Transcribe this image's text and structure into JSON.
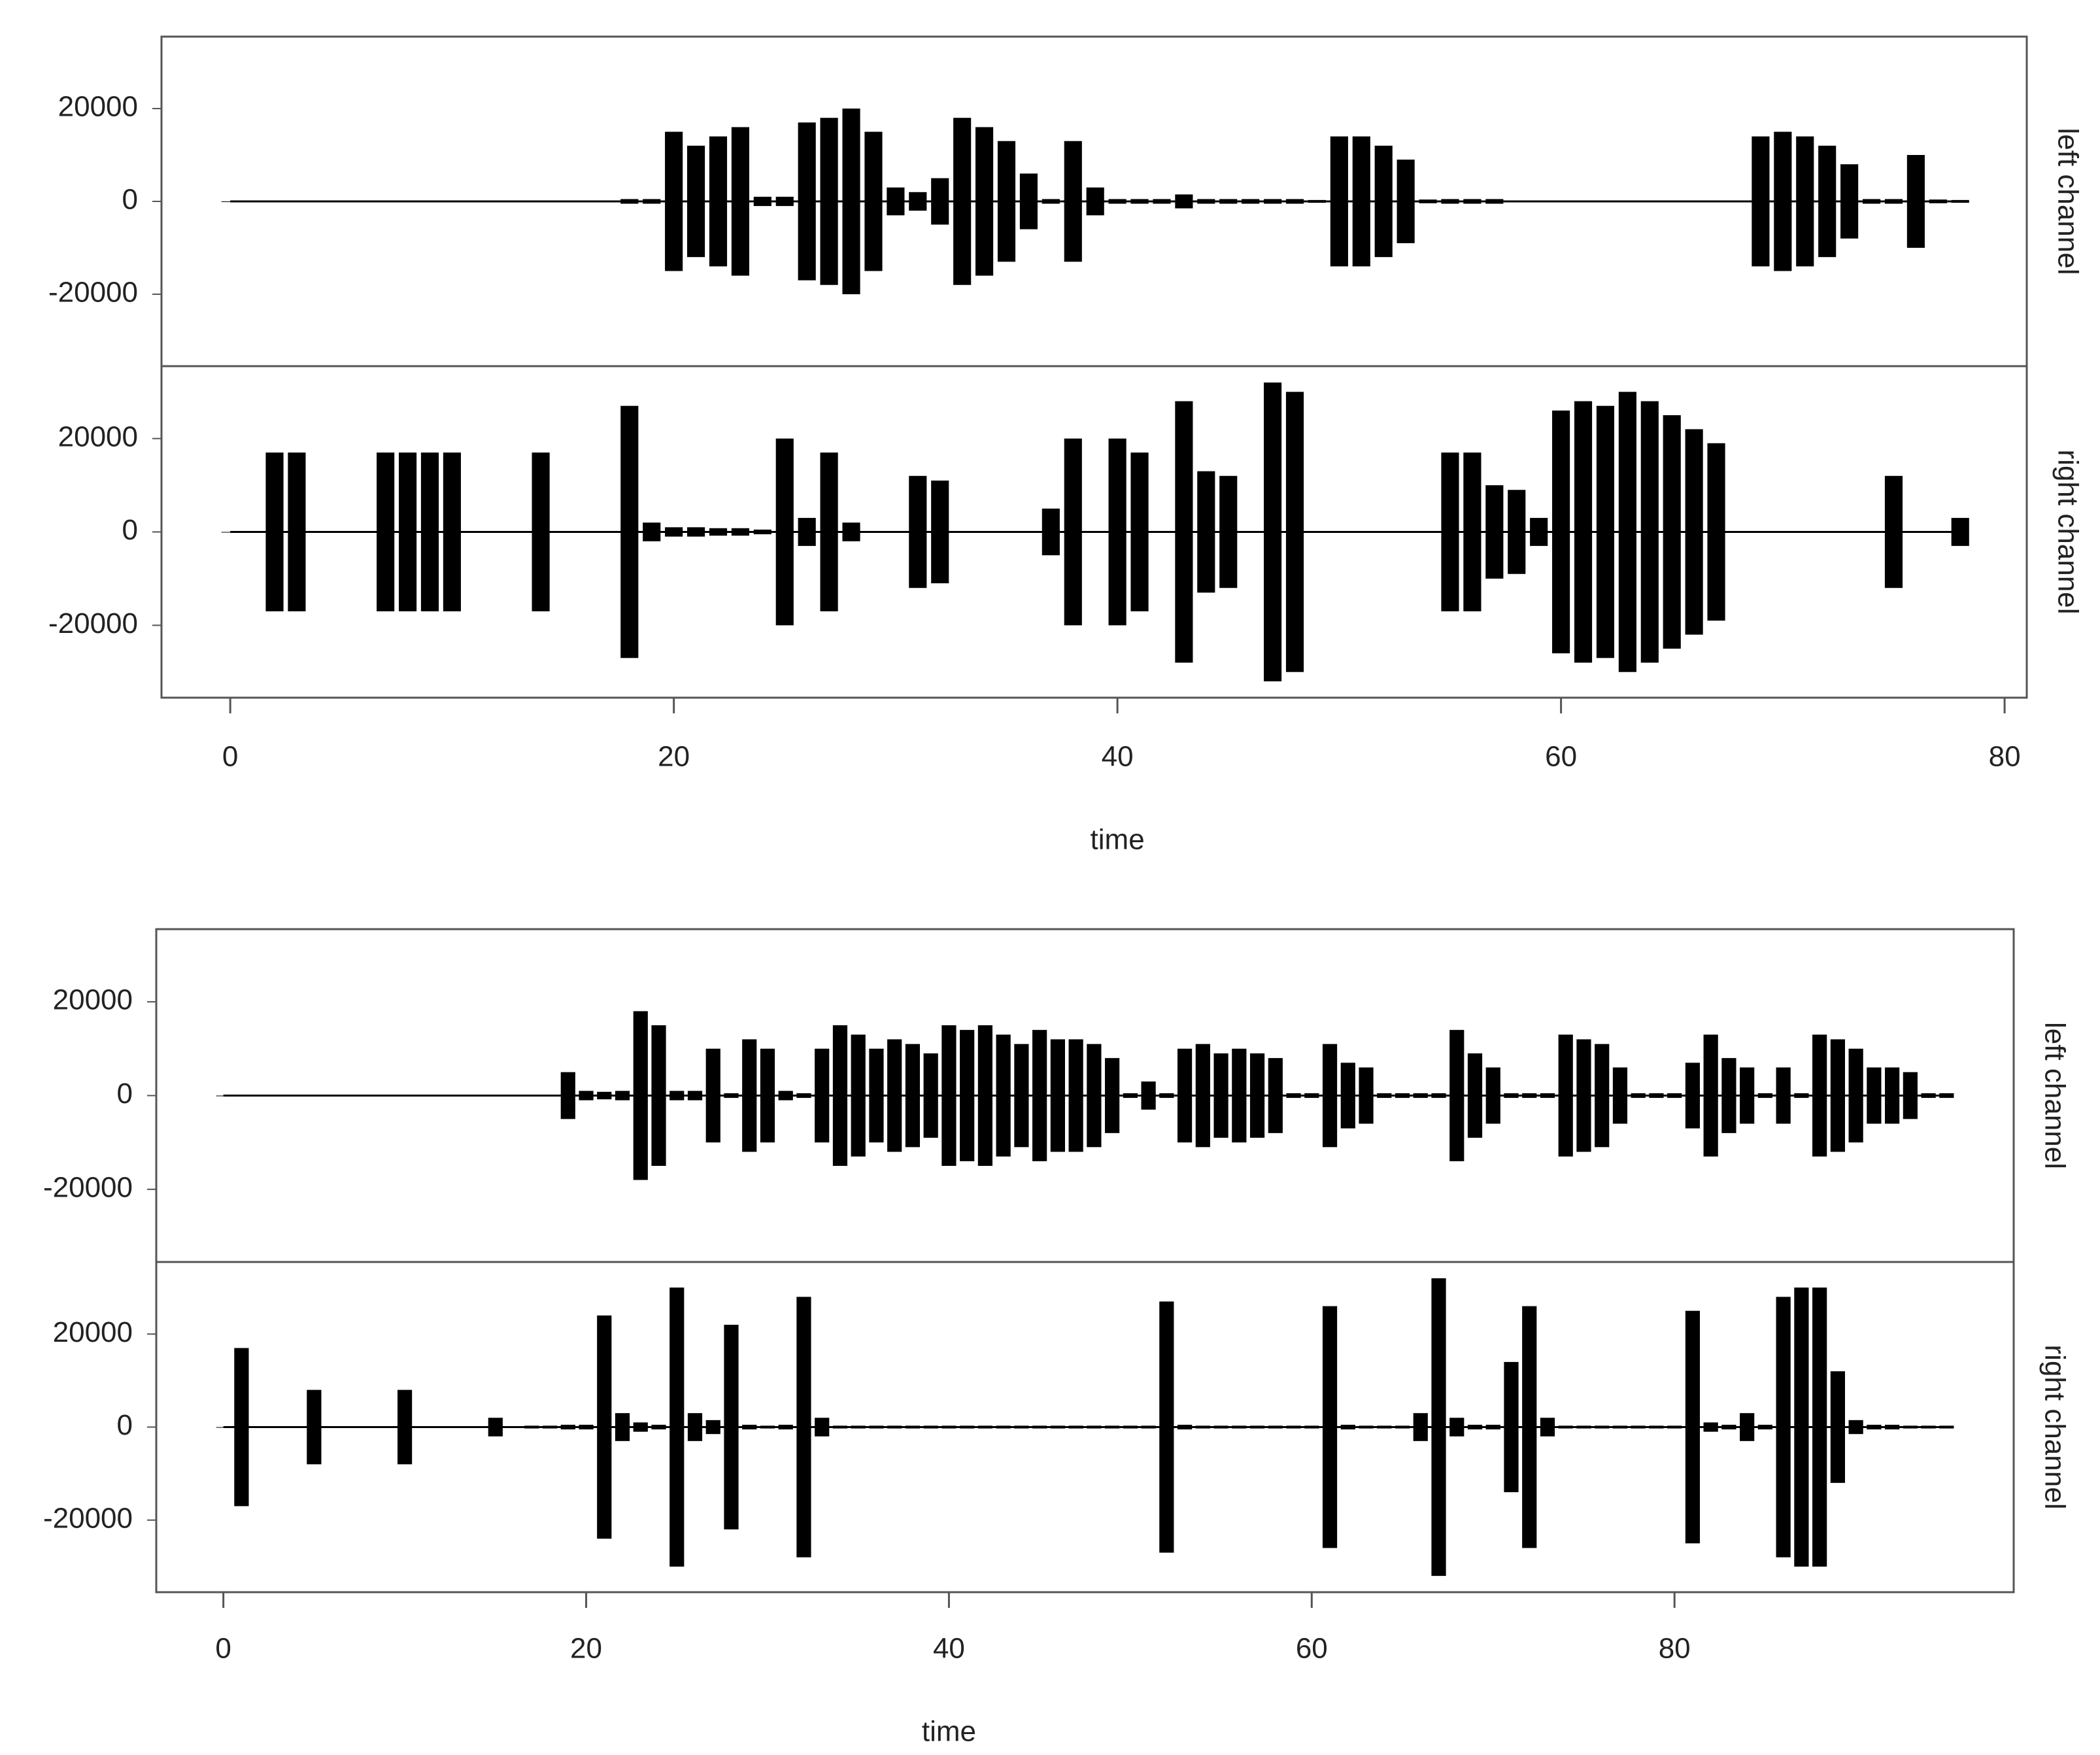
{
  "chart_data": [
    {
      "type": "waveform",
      "xlabel": "time",
      "color": "#000000",
      "xlim": [
        -3.1,
        81
      ],
      "xticks": [
        0,
        20,
        40,
        60,
        80
      ],
      "x": [
        0,
        1,
        2,
        3,
        4,
        5,
        6,
        7,
        8,
        9,
        10,
        11,
        12,
        13,
        14,
        15,
        16,
        17,
        18,
        19,
        20,
        21,
        22,
        23,
        24,
        25,
        26,
        27,
        28,
        29,
        30,
        31,
        32,
        33,
        34,
        35,
        36,
        37,
        38,
        39,
        40,
        41,
        42,
        43,
        44,
        45,
        46,
        47,
        48,
        49,
        50,
        51,
        52,
        53,
        54,
        55,
        56,
        57,
        58,
        59,
        60,
        61,
        62,
        63,
        64,
        65,
        66,
        67,
        68,
        69,
        70,
        71,
        72,
        73,
        74,
        75,
        76,
        77,
        78
      ],
      "panels": [
        {
          "label": "left channel",
          "ylim": [
            -35500,
            35500
          ],
          "yticks": [
            -20000,
            0,
            20000
          ],
          "values": [
            0,
            0,
            0,
            0,
            0,
            0,
            0,
            0,
            0,
            0,
            0,
            0,
            0,
            0,
            0,
            0,
            0,
            0,
            500,
            500,
            15000,
            12000,
            14000,
            16000,
            1000,
            1000,
            17000,
            18000,
            20000,
            15000,
            3000,
            2000,
            5000,
            18000,
            16000,
            13000,
            6000,
            500,
            13000,
            3000,
            500,
            500,
            500,
            1500,
            500,
            500,
            500,
            500,
            500,
            300,
            14000,
            14000,
            12000,
            9000,
            400,
            500,
            500,
            500,
            0,
            0,
            0,
            0,
            0,
            0,
            0,
            0,
            0,
            0,
            0,
            14000,
            15000,
            14000,
            12000,
            8000,
            500,
            500,
            10000,
            400,
            300
          ]
        },
        {
          "label": "right channel",
          "ylim": [
            -35500,
            35500
          ],
          "yticks": [
            -20000,
            0,
            20000
          ],
          "values": [
            0,
            0,
            17000,
            17000,
            0,
            0,
            0,
            17000,
            17000,
            17000,
            17000,
            0,
            0,
            0,
            17000,
            0,
            0,
            0,
            27000,
            2000,
            1000,
            1000,
            800,
            800,
            500,
            20000,
            3000,
            17000,
            2000,
            0,
            0,
            12000,
            11000,
            0,
            0,
            0,
            0,
            5000,
            20000,
            0,
            20000,
            17000,
            0,
            28000,
            13000,
            12000,
            0,
            32000,
            30000,
            0,
            0,
            0,
            0,
            0,
            0,
            17000,
            17000,
            10000,
            9000,
            3000,
            26000,
            28000,
            27000,
            30000,
            28000,
            25000,
            22000,
            19000,
            0,
            0,
            0,
            0,
            0,
            0,
            0,
            12000,
            0,
            0,
            3000
          ]
        }
      ]
    },
    {
      "type": "waveform",
      "xlabel": "time",
      "color": "#000000",
      "xlim": [
        -3.7,
        98.7
      ],
      "xticks": [
        0,
        20,
        40,
        60,
        80
      ],
      "x": [
        0,
        1,
        2,
        3,
        4,
        5,
        6,
        7,
        8,
        9,
        10,
        11,
        12,
        13,
        14,
        15,
        16,
        17,
        18,
        19,
        20,
        21,
        22,
        23,
        24,
        25,
        26,
        27,
        28,
        29,
        30,
        31,
        32,
        33,
        34,
        35,
        36,
        37,
        38,
        39,
        40,
        41,
        42,
        43,
        44,
        45,
        46,
        47,
        48,
        49,
        50,
        51,
        52,
        53,
        54,
        55,
        56,
        57,
        58,
        59,
        60,
        61,
        62,
        63,
        64,
        65,
        66,
        67,
        68,
        69,
        70,
        71,
        72,
        73,
        74,
        75,
        76,
        77,
        78,
        79,
        80,
        81,
        82,
        83,
        84,
        85,
        86,
        87,
        88,
        89,
        90,
        91,
        92,
        93,
        94,
        95
      ],
      "panels": [
        {
          "label": "left channel",
          "ylim": [
            -35500,
            35500
          ],
          "yticks": [
            -20000,
            0,
            20000
          ],
          "values": [
            0,
            0,
            0,
            0,
            0,
            0,
            0,
            0,
            0,
            0,
            0,
            0,
            0,
            0,
            0,
            0,
            0,
            0,
            0,
            5000,
            1000,
            800,
            1000,
            18000,
            15000,
            1000,
            1000,
            10000,
            500,
            12000,
            10000,
            1000,
            500,
            10000,
            15000,
            13000,
            10000,
            12000,
            11000,
            9000,
            15000,
            14000,
            15000,
            13000,
            11000,
            14000,
            12000,
            12000,
            11000,
            8000,
            500,
            3000,
            500,
            10000,
            11000,
            9000,
            10000,
            9000,
            8000,
            500,
            500,
            11000,
            7000,
            6000,
            500,
            500,
            500,
            500,
            14000,
            9000,
            6000,
            500,
            500,
            500,
            13000,
            12000,
            11000,
            6000,
            500,
            500,
            500,
            7000,
            13000,
            8000,
            6000,
            500,
            6000,
            500,
            13000,
            12000,
            10000,
            6000,
            6000,
            5000,
            500,
            500
          ]
        },
        {
          "label": "right channel",
          "ylim": [
            -35500,
            35500
          ],
          "yticks": [
            -20000,
            0,
            20000
          ],
          "values": [
            0,
            17000,
            0,
            0,
            0,
            8000,
            0,
            0,
            0,
            0,
            8000,
            0,
            0,
            0,
            0,
            2000,
            0,
            300,
            300,
            500,
            500,
            24000,
            3000,
            1000,
            500,
            30000,
            3000,
            1500,
            22000,
            500,
            300,
            500,
            28000,
            2000,
            300,
            300,
            300,
            300,
            300,
            300,
            300,
            300,
            300,
            300,
            300,
            300,
            300,
            300,
            300,
            300,
            300,
            300,
            27000,
            500,
            300,
            300,
            300,
            300,
            300,
            300,
            300,
            26000,
            500,
            300,
            300,
            300,
            3000,
            32000,
            2000,
            500,
            500,
            14000,
            26000,
            2000,
            300,
            300,
            300,
            300,
            300,
            300,
            300,
            25000,
            1000,
            500,
            3000,
            500,
            28000,
            30000,
            30000,
            12000,
            1500,
            500,
            500,
            300,
            300,
            300
          ]
        }
      ]
    }
  ]
}
